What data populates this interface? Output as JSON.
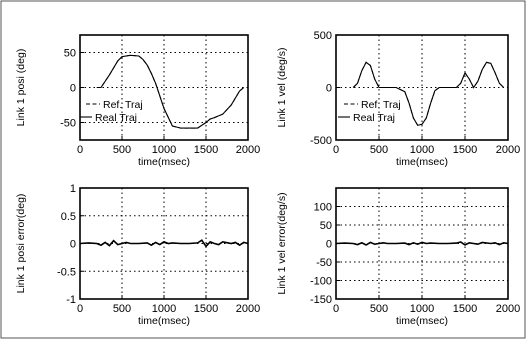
{
  "chart_data": [
    {
      "id": "posi",
      "type": "line",
      "title": "",
      "xlabel": "time(msec)",
      "ylabel": "Link 1 posi (deg)",
      "xlim": [
        0,
        2000
      ],
      "ylim": [
        -75,
        75
      ],
      "xticks": [
        0,
        500,
        1000,
        1500,
        2000
      ],
      "yticks": [
        50,
        0,
        -50
      ],
      "grid": true,
      "legend": {
        "placement": "lower-left",
        "entries": [
          "Ref. Traj",
          "Real Traj"
        ]
      },
      "series": [
        {
          "name": "Ref. Traj",
          "style": "dashed",
          "x": [
            200,
            250,
            350,
            450,
            500,
            600,
            700,
            750,
            800,
            850,
            900,
            1000,
            1100,
            1200,
            1300,
            1400,
            1500,
            1550,
            1600,
            1700,
            1800,
            1900,
            1950
          ],
          "y": [
            0,
            0,
            18,
            38,
            44,
            46,
            45,
            40,
            32,
            20,
            6,
            -30,
            -55,
            -58,
            -58,
            -58,
            -50,
            -45,
            -43,
            -38,
            -25,
            -5,
            0
          ]
        },
        {
          "name": "Real Traj",
          "style": "solid",
          "x": [
            200,
            250,
            350,
            450,
            500,
            600,
            700,
            750,
            800,
            850,
            900,
            1000,
            1100,
            1200,
            1300,
            1400,
            1500,
            1550,
            1600,
            1700,
            1800,
            1900,
            1950
          ],
          "y": [
            0,
            0,
            18,
            38,
            44,
            46,
            45,
            40,
            32,
            20,
            6,
            -30,
            -55,
            -58,
            -58,
            -58,
            -50,
            -45,
            -43,
            -38,
            -25,
            -5,
            0
          ]
        }
      ]
    },
    {
      "id": "vel",
      "type": "line",
      "title": "",
      "xlabel": "time(msec)",
      "ylabel": "Link 1 vel (deg/s)",
      "xlim": [
        0,
        2000
      ],
      "ylim": [
        -500,
        500
      ],
      "xticks": [
        0,
        500,
        1000,
        1500,
        2000
      ],
      "yticks": [
        500,
        0,
        -500
      ],
      "grid": true,
      "legend": {
        "placement": "lower-left",
        "entries": [
          "Ref. Traj",
          "Real Traj"
        ]
      },
      "series": [
        {
          "name": "Ref. Traj",
          "style": "dashed",
          "x": [
            200,
            250,
            300,
            350,
            400,
            450,
            500,
            550,
            600,
            700,
            800,
            850,
            900,
            950,
            1000,
            1050,
            1100,
            1150,
            1200,
            1300,
            1400,
            1450,
            1500,
            1550,
            1600,
            1650,
            1700,
            1750,
            1800,
            1850,
            1900,
            1950
          ],
          "y": [
            0,
            40,
            160,
            240,
            210,
            80,
            0,
            0,
            0,
            0,
            -40,
            -150,
            -290,
            -360,
            -350,
            -290,
            -150,
            -30,
            0,
            0,
            0,
            40,
            140,
            80,
            0,
            60,
            170,
            240,
            230,
            140,
            40,
            0
          ]
        },
        {
          "name": "Real Traj",
          "style": "solid",
          "x": [
            200,
            250,
            300,
            350,
            400,
            450,
            500,
            550,
            600,
            700,
            800,
            850,
            900,
            950,
            1000,
            1050,
            1100,
            1150,
            1200,
            1300,
            1400,
            1450,
            1500,
            1550,
            1600,
            1650,
            1700,
            1750,
            1800,
            1850,
            1900,
            1950
          ],
          "y": [
            0,
            40,
            160,
            240,
            210,
            80,
            0,
            0,
            0,
            0,
            -40,
            -150,
            -290,
            -360,
            -350,
            -290,
            -150,
            -30,
            0,
            0,
            0,
            40,
            140,
            80,
            0,
            60,
            170,
            240,
            230,
            140,
            40,
            0
          ]
        }
      ]
    },
    {
      "id": "posi_err",
      "type": "line",
      "title": "",
      "xlabel": "time(msec)",
      "ylabel": "Link 1 posi error(deg)",
      "xlim": [
        0,
        2000
      ],
      "ylim": [
        -1,
        1
      ],
      "xticks": [
        0,
        500,
        1000,
        1500,
        2000
      ],
      "yticks": [
        1,
        0.5,
        0,
        -0.5,
        -1
      ],
      "grid": true,
      "series": [
        {
          "name": "",
          "style": "solid",
          "x": [
            0,
            100,
            200,
            250,
            300,
            350,
            400,
            450,
            500,
            550,
            600,
            700,
            800,
            850,
            900,
            950,
            1000,
            1050,
            1100,
            1200,
            1300,
            1400,
            1450,
            1500,
            1550,
            1600,
            1650,
            1700,
            1800,
            1850,
            1900,
            1950,
            2000
          ],
          "y": [
            0,
            0.01,
            0,
            -0.03,
            0.02,
            -0.04,
            0.05,
            -0.02,
            0,
            0.02,
            0,
            0,
            0.01,
            -0.03,
            0.02,
            -0.02,
            0.03,
            0,
            0.01,
            0,
            0,
            0.01,
            0.06,
            -0.05,
            0.03,
            0,
            -0.02,
            0.03,
            0,
            0.02,
            -0.03,
            0.02,
            0
          ]
        }
      ]
    },
    {
      "id": "vel_err",
      "type": "line",
      "title": "",
      "xlabel": "time(msec)",
      "ylabel": "Link 1 vel error(deg/s)",
      "xlim": [
        0,
        2000
      ],
      "ylim": [
        -150,
        150
      ],
      "xticks": [
        0,
        500,
        1000,
        1500,
        2000
      ],
      "yticks": [
        100,
        50,
        0,
        -50,
        -100,
        -150
      ],
      "grid": true,
      "series": [
        {
          "name": "",
          "style": "solid",
          "x": [
            0,
            100,
            200,
            250,
            300,
            350,
            400,
            450,
            500,
            550,
            600,
            700,
            800,
            850,
            900,
            950,
            1000,
            1050,
            1100,
            1200,
            1300,
            1400,
            1450,
            1500,
            1550,
            1600,
            1650,
            1700,
            1800,
            1850,
            1900,
            1950,
            2000
          ],
          "y": [
            0,
            1,
            0,
            -3,
            2,
            -4,
            3,
            -2,
            0,
            2,
            0,
            0,
            1,
            -3,
            2,
            -2,
            3,
            0,
            1,
            0,
            0,
            1,
            4,
            -4,
            2,
            0,
            -2,
            3,
            0,
            2,
            -3,
            2,
            0
          ]
        }
      ]
    }
  ]
}
